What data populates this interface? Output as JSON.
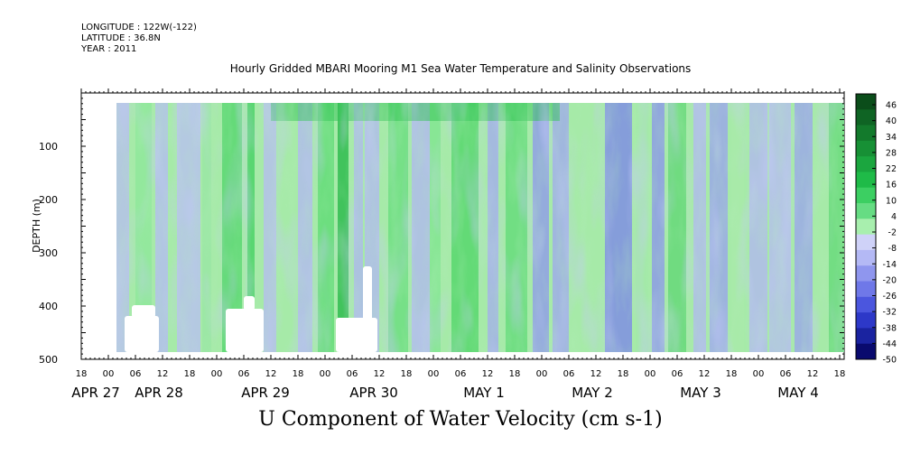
{
  "header": {
    "longitude": "LONGITUDE : 122W(-122)",
    "latitude": "LATITUDE : 36.8N",
    "year": "YEAR : 2011"
  },
  "chart_data": {
    "type": "heatmap",
    "title": "Hourly Gridded MBARI Mooring M1 Sea Water Temperature and Salinity Observations",
    "xlabel": "U Component of Water Velocity (cm s-1)",
    "ylabel": "DEPTH (m)",
    "y_ticks": [
      100,
      200,
      300,
      400,
      500
    ],
    "ylim": [
      500,
      0
    ],
    "x_hour_ticks": [
      "18",
      "00",
      "06",
      "12",
      "18",
      "00",
      "06",
      "12",
      "18",
      "00",
      "06",
      "12",
      "18",
      "00",
      "06",
      "12",
      "18",
      "00",
      "06",
      "12",
      "18",
      "00",
      "06",
      "12",
      "18",
      "00",
      "06",
      "12",
      "18"
    ],
    "x_date_labels": [
      "APR 27",
      "APR 28",
      "APR 29",
      "APR 30",
      "MAY  1",
      "MAY  2",
      "MAY  3",
      "MAY  4"
    ],
    "colorbar": {
      "levels": [
        "46",
        "40",
        "34",
        "28",
        "22",
        "16",
        "10",
        "4",
        "-2",
        "-8",
        "-14",
        "-20",
        "-26",
        "-32",
        "-38",
        "-44",
        "-50"
      ],
      "colors": {
        "strong_positive": "#0b4d1a",
        "positive": "#1fc24a",
        "weak_positive": "#a8efae",
        "weak_negative": "#b4b9f5",
        "negative": "#6f78e8",
        "strong_negative": "#090a6e"
      }
    }
  }
}
